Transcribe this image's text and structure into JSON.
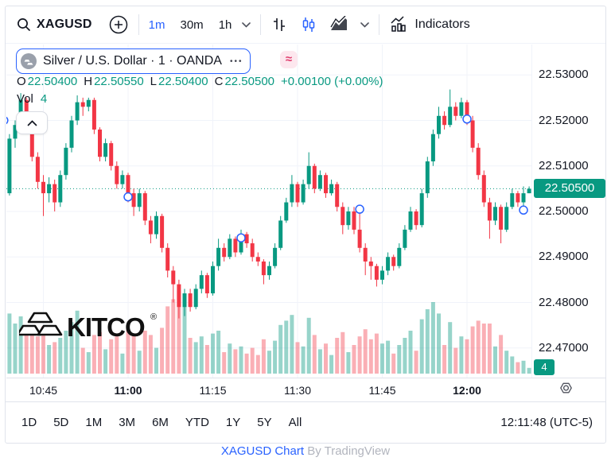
{
  "colors": {
    "up": "#089981",
    "down": "#f23645",
    "vol_up": "rgba(8,153,129,0.42)",
    "vol_down": "rgba(242,54,69,0.40)",
    "accent_blue": "#2962ff",
    "text": "#131722",
    "grid": "#f0f3fa",
    "border": "#e0e3eb"
  },
  "toolbar": {
    "symbol": "XAGUSD",
    "intervals": [
      {
        "label": "1m",
        "active": true
      },
      {
        "label": "30m",
        "active": false
      },
      {
        "label": "1h",
        "active": false
      }
    ],
    "indicators_label": "Indicators"
  },
  "legend": {
    "name": "Silver / U.S. Dollar · 1 · OANDA",
    "more": "•••",
    "approx": "≈"
  },
  "ohlc": {
    "o_label": "O",
    "o": "22.50400",
    "h_label": "H",
    "h": "22.50550",
    "l_label": "L",
    "l": "22.50400",
    "c_label": "C",
    "c": "22.50500",
    "change": "+0.00100 (+0.00%)"
  },
  "vol_row": {
    "label": "Vol",
    "value": "4"
  },
  "watermark": {
    "text": "KITCO",
    "reg": "®"
  },
  "price_axis": {
    "current_label": "22.50500",
    "volume_label": "4"
  },
  "ranges": {
    "items": [
      "1D",
      "5D",
      "1M",
      "3M",
      "6M",
      "YTD",
      "1Y",
      "5Y",
      "All"
    ],
    "clock": "12:11:48 (UTC-5)"
  },
  "footer": {
    "link": "XAGUSD Chart",
    "suffix": " By TradingView"
  },
  "chart_data": {
    "type": "candlestick",
    "symbol": "XAGUSD",
    "exchange": "OANDA",
    "interval": "1m",
    "title": "Silver / U.S. Dollar · 1 · OANDA",
    "current_price": 22.505,
    "visible_range": {
      "time_start": "10:38",
      "time_end": "12:11",
      "price_min": 22.464,
      "price_max": 22.532
    },
    "price_ticks": [
      {
        "label": "22.53000",
        "value": 22.53
      },
      {
        "label": "22.52000",
        "value": 22.52
      },
      {
        "label": "22.51000",
        "value": 22.51
      },
      {
        "label": "22.50000",
        "value": 22.5
      },
      {
        "label": "22.49000",
        "value": 22.49
      },
      {
        "label": "22.48000",
        "value": 22.48
      },
      {
        "label": "22.47000",
        "value": 22.47
      }
    ],
    "time_ticks": [
      {
        "label": "10:45",
        "index": 7,
        "bold": false
      },
      {
        "label": "11:00",
        "index": 22,
        "bold": true
      },
      {
        "label": "11:15",
        "index": 37,
        "bold": false
      },
      {
        "label": "11:30",
        "index": 52,
        "bold": false
      },
      {
        "label": "11:45",
        "index": 67,
        "bold": false
      },
      {
        "label": "12:00",
        "index": 82,
        "bold": true
      }
    ],
    "volume_last": 4,
    "markers": [
      {
        "index": 0,
        "price": 22.52
      },
      {
        "index": 22,
        "price": 22.5032
      },
      {
        "index": 42,
        "price": 22.4942
      },
      {
        "index": 63,
        "price": 22.5005
      },
      {
        "index": 82,
        "price": 22.5203
      },
      {
        "index": 92,
        "price": 22.5003
      }
    ],
    "candles": [
      [
        22.509,
        22.51,
        22.503,
        22.504,
        18
      ],
      [
        22.504,
        22.517,
        22.5035,
        22.516,
        42
      ],
      [
        22.516,
        22.52,
        22.514,
        22.519,
        35
      ],
      [
        22.519,
        22.526,
        22.518,
        22.5245,
        40
      ],
      [
        22.5245,
        22.525,
        22.517,
        22.518,
        30
      ],
      [
        22.518,
        22.519,
        22.511,
        22.512,
        28
      ],
      [
        22.512,
        22.513,
        22.505,
        22.5065,
        26
      ],
      [
        22.5065,
        22.508,
        22.499,
        22.504,
        33
      ],
      [
        22.504,
        22.5075,
        22.502,
        22.506,
        20
      ],
      [
        22.506,
        22.507,
        22.5,
        22.502,
        22
      ],
      [
        22.502,
        22.509,
        22.501,
        22.508,
        25
      ],
      [
        22.508,
        22.515,
        22.507,
        22.514,
        30
      ],
      [
        22.514,
        22.521,
        22.513,
        22.52,
        36
      ],
      [
        22.52,
        22.5255,
        22.519,
        22.524,
        44
      ],
      [
        22.524,
        22.525,
        22.521,
        22.523,
        18
      ],
      [
        22.523,
        22.525,
        22.522,
        22.5245,
        15
      ],
      [
        22.5245,
        22.525,
        22.517,
        22.518,
        27
      ],
      [
        22.518,
        22.5185,
        22.511,
        22.512,
        29
      ],
      [
        22.512,
        22.516,
        22.511,
        22.515,
        17
      ],
      [
        22.515,
        22.5155,
        22.509,
        22.51,
        24
      ],
      [
        22.51,
        22.511,
        22.505,
        22.506,
        26
      ],
      [
        22.506,
        22.509,
        22.505,
        22.508,
        14
      ],
      [
        22.508,
        22.5085,
        22.502,
        22.504,
        31
      ],
      [
        22.504,
        22.505,
        22.499,
        22.501,
        28
      ],
      [
        22.501,
        22.505,
        22.5,
        22.504,
        16
      ],
      [
        22.504,
        22.5045,
        22.497,
        22.498,
        30
      ],
      [
        22.498,
        22.499,
        22.493,
        22.495,
        27
      ],
      [
        22.495,
        22.5,
        22.494,
        22.499,
        18
      ],
      [
        22.499,
        22.4995,
        22.491,
        22.492,
        32
      ],
      [
        22.492,
        22.493,
        22.4855,
        22.487,
        47
      ],
      [
        22.487,
        22.488,
        22.48,
        22.484,
        52
      ],
      [
        22.484,
        22.485,
        22.4765,
        22.479,
        58
      ],
      [
        22.479,
        22.483,
        22.477,
        22.482,
        49
      ],
      [
        22.482,
        22.483,
        22.478,
        22.479,
        25
      ],
      [
        22.479,
        22.484,
        22.4785,
        22.483,
        22
      ],
      [
        22.483,
        22.487,
        22.482,
        22.486,
        26
      ],
      [
        22.486,
        22.4865,
        22.481,
        22.482,
        20
      ],
      [
        22.482,
        22.489,
        22.4815,
        22.488,
        28
      ],
      [
        22.488,
        22.494,
        22.487,
        22.492,
        30
      ],
      [
        22.492,
        22.493,
        22.489,
        22.49,
        15
      ],
      [
        22.49,
        22.495,
        22.4895,
        22.494,
        21
      ],
      [
        22.494,
        22.4945,
        22.49,
        22.491,
        17
      ],
      [
        22.491,
        22.496,
        22.4905,
        22.495,
        19
      ],
      [
        22.495,
        22.4955,
        22.492,
        22.493,
        14
      ],
      [
        22.493,
        22.494,
        22.489,
        22.49,
        18
      ],
      [
        22.49,
        22.491,
        22.488,
        22.489,
        13
      ],
      [
        22.489,
        22.4895,
        22.484,
        22.486,
        24
      ],
      [
        22.486,
        22.489,
        22.485,
        22.488,
        16
      ],
      [
        22.488,
        22.493,
        22.4875,
        22.492,
        23
      ],
      [
        22.492,
        22.499,
        22.4915,
        22.498,
        34
      ],
      [
        22.498,
        22.503,
        22.4975,
        22.502,
        37
      ],
      [
        22.502,
        22.508,
        22.501,
        22.506,
        41
      ],
      [
        22.506,
        22.5065,
        22.501,
        22.502,
        22
      ],
      [
        22.502,
        22.507,
        22.5015,
        22.506,
        19
      ],
      [
        22.506,
        22.513,
        22.505,
        22.51,
        39
      ],
      [
        22.51,
        22.5105,
        22.504,
        22.505,
        27
      ],
      [
        22.505,
        22.509,
        22.5045,
        22.508,
        17
      ],
      [
        22.508,
        22.5085,
        22.503,
        22.504,
        21
      ],
      [
        22.504,
        22.507,
        22.5035,
        22.506,
        13
      ],
      [
        22.506,
        22.5065,
        22.5,
        22.501,
        25
      ],
      [
        22.501,
        22.502,
        22.495,
        22.497,
        29
      ],
      [
        22.497,
        22.501,
        22.496,
        22.5,
        15
      ],
      [
        22.5,
        22.501,
        22.495,
        22.496,
        20
      ],
      [
        22.496,
        22.5008,
        22.491,
        22.492,
        26
      ],
      [
        22.492,
        22.493,
        22.486,
        22.489,
        31
      ],
      [
        22.489,
        22.49,
        22.485,
        22.488,
        24
      ],
      [
        22.488,
        22.4885,
        22.4835,
        22.485,
        28
      ],
      [
        22.485,
        22.488,
        22.484,
        22.487,
        21
      ],
      [
        22.487,
        22.491,
        22.486,
        22.49,
        23
      ],
      [
        22.49,
        22.4905,
        22.487,
        22.488,
        14
      ],
      [
        22.488,
        22.493,
        22.4875,
        22.492,
        20
      ],
      [
        22.492,
        22.497,
        22.4915,
        22.496,
        25
      ],
      [
        22.496,
        22.501,
        22.4955,
        22.5,
        30
      ],
      [
        22.5,
        22.5005,
        22.496,
        22.497,
        16
      ],
      [
        22.497,
        22.505,
        22.4965,
        22.504,
        38
      ],
      [
        22.504,
        22.512,
        22.503,
        22.511,
        45
      ],
      [
        22.511,
        22.518,
        22.51,
        22.517,
        50
      ],
      [
        22.517,
        22.523,
        22.516,
        22.521,
        42
      ],
      [
        22.521,
        22.522,
        22.518,
        22.519,
        20
      ],
      [
        22.519,
        22.5268,
        22.5185,
        22.523,
        36
      ],
      [
        22.523,
        22.524,
        22.52,
        22.521,
        18
      ],
      [
        22.521,
        22.525,
        22.5205,
        22.524,
        26
      ],
      [
        22.524,
        22.5245,
        22.519,
        22.52,
        24
      ],
      [
        22.52,
        22.521,
        22.513,
        22.514,
        33
      ],
      [
        22.514,
        22.515,
        22.507,
        22.508,
        37
      ],
      [
        22.508,
        22.509,
        22.501,
        22.502,
        35
      ],
      [
        22.502,
        22.503,
        22.494,
        22.498,
        35
      ],
      [
        22.498,
        22.502,
        22.497,
        22.501,
        19
      ],
      [
        22.501,
        22.5015,
        22.493,
        22.496,
        27
      ],
      [
        22.496,
        22.502,
        22.4955,
        22.501,
        16
      ],
      [
        22.501,
        22.505,
        22.5005,
        22.504,
        12
      ],
      [
        22.504,
        22.5045,
        22.501,
        22.502,
        8
      ],
      [
        22.502,
        22.5055,
        22.5005,
        22.504,
        9
      ],
      [
        22.504,
        22.5055,
        22.504,
        22.505,
        4
      ]
    ]
  }
}
